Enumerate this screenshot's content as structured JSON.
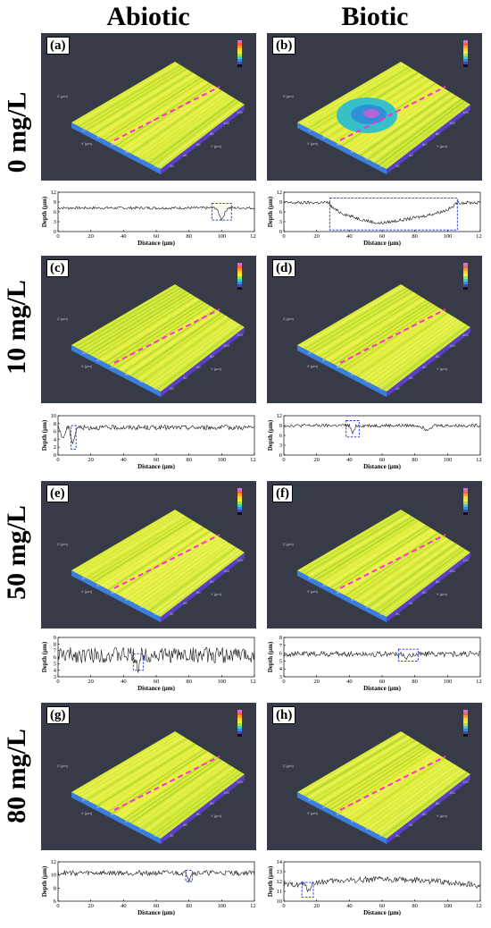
{
  "columns": [
    "Abiotic",
    "Biotic"
  ],
  "rows": [
    "0 mg/L",
    "10 mg/L",
    "50 mg/L",
    "80 mg/L"
  ],
  "panels": [
    {
      "letter": "(a)",
      "pit": false
    },
    {
      "letter": "(b)",
      "pit": true
    },
    {
      "letter": "(c)",
      "pit": false
    },
    {
      "letter": "(d)",
      "pit": false
    },
    {
      "letter": "(e)",
      "pit": false
    },
    {
      "letter": "(f)",
      "pit": false
    },
    {
      "letter": "(g)",
      "pit": false
    },
    {
      "letter": "(h)",
      "pit": false
    }
  ],
  "surface_axis_labels": {
    "x": "X (μm)",
    "y": "Y (μm)",
    "z": "Z (μm)"
  },
  "surface_ticks": [
    "20",
    "40",
    "60",
    "80",
    "100",
    "120"
  ],
  "chart_data": [
    {
      "type": "line",
      "panel": "a",
      "xlabel": "Distance (μm)",
      "ylabel": "Depth (μm)",
      "xlim": [
        0,
        120
      ],
      "ylim": [
        0,
        12
      ],
      "yticks": [
        0,
        3,
        6,
        9,
        12
      ],
      "xticks": [
        0,
        20,
        40,
        60,
        80,
        100,
        120
      ],
      "baseline": 7.2,
      "noise": 0.4,
      "dips": [
        {
          "x": 100,
          "w": 3,
          "depth": 3.5
        }
      ],
      "box": {
        "x": [
          94,
          106
        ],
        "y": [
          3.5,
          8.6
        ]
      }
    },
    {
      "type": "line",
      "panel": "b",
      "xlabel": "Distance (μm)",
      "ylabel": "Depth (μm)",
      "xlim": [
        0,
        120
      ],
      "ylim": [
        0,
        12
      ],
      "yticks": [
        0,
        3,
        6,
        9,
        12
      ],
      "xticks": [
        0,
        20,
        40,
        60,
        80,
        100,
        120
      ],
      "baseline": 8.8,
      "noise": 0.5,
      "valley": {
        "x": [
          28,
          105
        ],
        "center": 58,
        "depth": 6.3
      },
      "box": {
        "x": [
          28,
          106
        ],
        "y": [
          0.5,
          10.2
        ]
      }
    },
    {
      "type": "line",
      "panel": "c",
      "xlabel": "Distance (μm)",
      "ylabel": "Depth (μm)",
      "xlim": [
        0,
        120
      ],
      "ylim": [
        0,
        10
      ],
      "yticks": [
        0,
        2,
        4,
        6,
        8,
        10
      ],
      "xticks": [
        0,
        20,
        40,
        60,
        80,
        100,
        120
      ],
      "baseline": 7.0,
      "noise": 0.6,
      "dips": [
        {
          "x": 3,
          "w": 2,
          "depth": 3
        },
        {
          "x": 9,
          "w": 2,
          "depth": 4
        }
      ],
      "box": {
        "x": [
          8,
          11
        ],
        "y": [
          1.5,
          7.5
        ]
      }
    },
    {
      "type": "line",
      "panel": "d",
      "xlabel": "Distance (μm)",
      "ylabel": "Depth (μm)",
      "xlim": [
        0,
        120
      ],
      "ylim": [
        0,
        12
      ],
      "yticks": [
        0,
        3,
        6,
        9,
        12
      ],
      "xticks": [
        0,
        20,
        40,
        60,
        80,
        100,
        120
      ],
      "baseline": 9.0,
      "noise": 0.5,
      "dips": [
        {
          "x": 42,
          "w": 1.5,
          "depth": 2.5
        },
        {
          "x": 87,
          "w": 4,
          "depth": 1.2
        }
      ],
      "box": {
        "x": [
          38,
          46
        ],
        "y": [
          5.5,
          10.5
        ]
      }
    },
    {
      "type": "line",
      "panel": "e",
      "xlabel": "Distance (μm)",
      "ylabel": "Depth (μm)",
      "xlim": [
        0,
        120
      ],
      "ylim": [
        3,
        9
      ],
      "yticks": [
        3,
        4,
        5,
        6,
        7,
        8,
        9
      ],
      "xticks": [
        0,
        20,
        40,
        60,
        80,
        100,
        120
      ],
      "baseline": 6.3,
      "noise": 1.2,
      "dips": [
        {
          "x": 49,
          "w": 1.5,
          "depth": 2.0
        }
      ],
      "box": {
        "x": [
          46,
          52
        ],
        "y": [
          4.0,
          6.5
        ]
      }
    },
    {
      "type": "line",
      "panel": "f",
      "xlabel": "Distance (μm)",
      "ylabel": "Depth (μm)",
      "xlim": [
        0,
        120
      ],
      "ylim": [
        3,
        8
      ],
      "yticks": [
        3,
        4,
        5,
        6,
        7,
        8
      ],
      "xticks": [
        0,
        20,
        40,
        60,
        80,
        100,
        120
      ],
      "baseline": 5.9,
      "noise": 0.35,
      "dips": [
        {
          "x": 75,
          "w": 4,
          "depth": 0.5
        }
      ],
      "box": {
        "x": [
          70,
          82
        ],
        "y": [
          5.0,
          6.5
        ]
      }
    },
    {
      "type": "line",
      "panel": "g",
      "xlabel": "Distance (μm)",
      "ylabel": "Depth (μm)",
      "xlim": [
        0,
        120
      ],
      "ylim": [
        6,
        12
      ],
      "yticks": [
        6,
        8,
        10,
        12
      ],
      "xticks": [
        0,
        20,
        40,
        60,
        80,
        100,
        120
      ],
      "baseline": 10.3,
      "noise": 0.4,
      "dips": [
        {
          "x": 80,
          "w": 1,
          "depth": 1.0
        }
      ],
      "box": {
        "x": [
          78,
          82
        ],
        "y": [
          9.0,
          10.7
        ]
      }
    },
    {
      "type": "line",
      "panel": "h",
      "xlabel": "Distance (μm)",
      "ylabel": "Depth (μm)",
      "xlim": [
        0,
        120
      ],
      "ylim": [
        10,
        14
      ],
      "yticks": [
        10,
        11,
        12,
        13,
        14
      ],
      "xticks": [
        0,
        20,
        40,
        60,
        80,
        100,
        120
      ],
      "baseline": 11.6,
      "noise": 0.3,
      "trend": 0.6,
      "dips": [
        {
          "x": 15,
          "w": 3,
          "depth": 0.7
        }
      ],
      "box": {
        "x": [
          11,
          18
        ],
        "y": [
          10.4,
          11.9
        ]
      }
    }
  ]
}
